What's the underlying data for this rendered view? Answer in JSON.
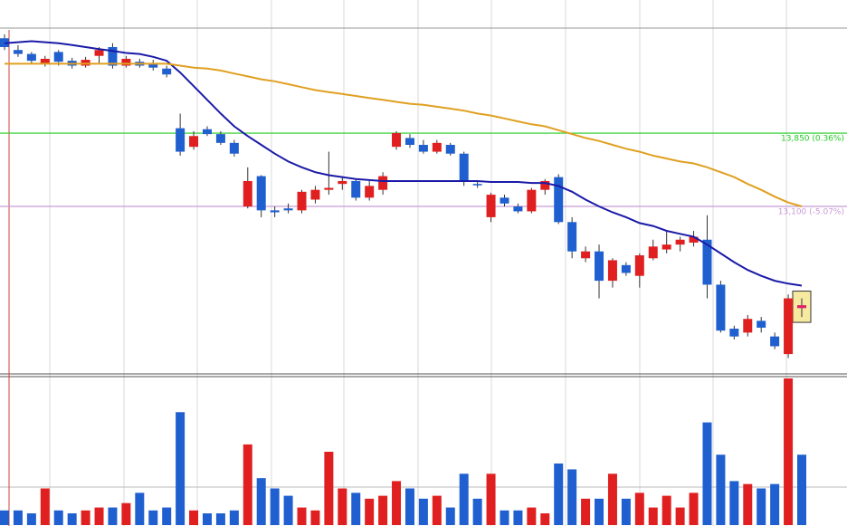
{
  "chart_data": {
    "type": "candlestick",
    "up_color": "#e02020",
    "down_color": "#1f5fcf",
    "ylim": [
      11415,
      14906
    ],
    "open": [
      14820,
      14700,
      14660,
      14560,
      14680,
      14590,
      14540,
      14640,
      14730,
      14540,
      14580,
      14560,
      14510,
      13900,
      13710,
      13890,
      13840,
      13750,
      13100,
      13410,
      13060,
      13080,
      13060,
      13170,
      13270,
      13330,
      13360,
      13190,
      13270,
      13710,
      13800,
      13730,
      13660,
      13730,
      13640,
      13330,
      12990,
      13190,
      13100,
      13050,
      13270,
      13400,
      12940,
      12570,
      12640,
      12340,
      12500,
      12390,
      12570,
      12660,
      12710,
      12730,
      12760,
      12300,
      11850,
      11810,
      11930,
      11770,
      11590,
      12090
    ],
    "high": [
      14860,
      14750,
      14680,
      14640,
      14700,
      14620,
      14630,
      14730,
      14770,
      14640,
      14610,
      14600,
      14540,
      14050,
      13870,
      13920,
      13870,
      13780,
      13500,
      13420,
      13100,
      13130,
      13270,
      13310,
      13660,
      13410,
      13380,
      13360,
      13450,
      13870,
      13840,
      13780,
      13780,
      13750,
      13660,
      13360,
      13240,
      13220,
      13130,
      13290,
      13380,
      13430,
      12990,
      12690,
      12710,
      12570,
      12530,
      12620,
      12760,
      12850,
      12790,
      12850,
      13010,
      12340,
      11880,
      11990,
      11970,
      11810,
      12200,
      12160
    ],
    "low": [
      14700,
      14630,
      14560,
      14530,
      14540,
      14510,
      14520,
      14560,
      14510,
      14520,
      14520,
      14490,
      14420,
      13620,
      13680,
      13820,
      13730,
      13610,
      13080,
      12990,
      12990,
      13030,
      13030,
      13130,
      13220,
      13270,
      13160,
      13160,
      13220,
      13680,
      13700,
      13640,
      13640,
      13620,
      13310,
      13290,
      12940,
      13100,
      13030,
      13030,
      13220,
      12920,
      12570,
      12530,
      12160,
      12270,
      12390,
      12270,
      12550,
      12620,
      12640,
      12690,
      12160,
      11810,
      11740,
      11770,
      11810,
      11640,
      11550,
      11970
    ],
    "close": [
      14730,
      14660,
      14590,
      14610,
      14580,
      14540,
      14600,
      14700,
      14540,
      14610,
      14540,
      14520,
      14450,
      13660,
      13820,
      13840,
      13750,
      13640,
      13360,
      13060,
      13040,
      13060,
      13250,
      13270,
      13290,
      13360,
      13190,
      13310,
      13410,
      13850,
      13730,
      13660,
      13750,
      13640,
      13360,
      13320,
      13220,
      13130,
      13050,
      13270,
      13360,
      12940,
      12640,
      12640,
      12340,
      12550,
      12420,
      12600,
      12690,
      12710,
      12760,
      12790,
      12300,
      11830,
      11770,
      11950,
      11860,
      11670,
      12160,
      12060
    ],
    "ma_series": [
      {
        "color": "#1a1aa8",
        "values": [
          14770,
          14780,
          14790,
          14780,
          14770,
          14750,
          14730,
          14710,
          14690,
          14670,
          14660,
          14630,
          14590,
          14470,
          14330,
          14190,
          14050,
          13920,
          13820,
          13730,
          13640,
          13560,
          13500,
          13450,
          13420,
          13400,
          13380,
          13370,
          13360,
          13360,
          13360,
          13360,
          13360,
          13360,
          13360,
          13360,
          13350,
          13350,
          13350,
          13340,
          13340,
          13310,
          13250,
          13170,
          13100,
          13040,
          12990,
          12930,
          12900,
          12850,
          12820,
          12790,
          12710,
          12620,
          12530,
          12450,
          12390,
          12340,
          12310,
          12290
        ]
      },
      {
        "color": "#e0a020",
        "values": [
          14560,
          14560,
          14560,
          14560,
          14560,
          14560,
          14560,
          14560,
          14560,
          14560,
          14560,
          14560,
          14560,
          14540,
          14520,
          14510,
          14490,
          14460,
          14430,
          14400,
          14380,
          14350,
          14320,
          14290,
          14270,
          14250,
          14230,
          14210,
          14190,
          14170,
          14150,
          14140,
          14120,
          14100,
          14080,
          14050,
          14030,
          14000,
          13970,
          13940,
          13920,
          13880,
          13840,
          13800,
          13770,
          13730,
          13690,
          13660,
          13620,
          13590,
          13560,
          13540,
          13500,
          13450,
          13400,
          13330,
          13270,
          13200,
          13140,
          13100
        ]
      }
    ],
    "volume": [
      10,
      10,
      8,
      25,
      10,
      8,
      10,
      12,
      12,
      15,
      22,
      10,
      12,
      77,
      10,
      8,
      8,
      10,
      55,
      32,
      25,
      20,
      12,
      10,
      50,
      25,
      22,
      18,
      20,
      30,
      25,
      18,
      20,
      12,
      35,
      18,
      35,
      10,
      10,
      12,
      8,
      42,
      38,
      18,
      18,
      35,
      18,
      22,
      12,
      20,
      12,
      22,
      70,
      48,
      30,
      28,
      25,
      28,
      100,
      48
    ],
    "volume_ylim": [
      0,
      100
    ],
    "lines": [
      {
        "value": 13850,
        "label": "13,850 (0.36%)",
        "color": "#22cc22"
      },
      {
        "value": 13100,
        "label": "13,100 (-5.07%)",
        "color": "#c89ad8"
      }
    ]
  }
}
